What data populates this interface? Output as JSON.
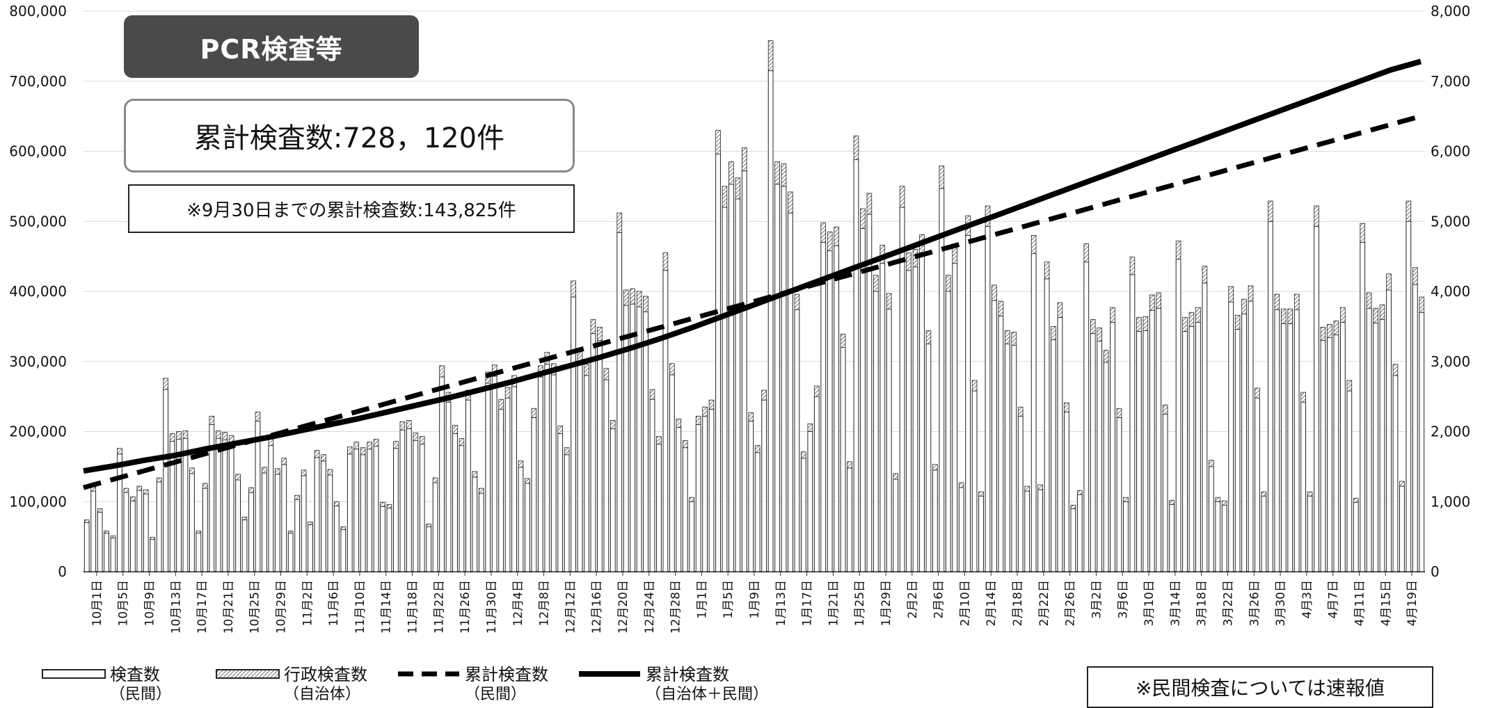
{
  "header": {
    "title": "PCR検査等",
    "total_label": "累計検査数:728，120件",
    "note": "※9月30日までの累計検査数:143,825件"
  },
  "footnote": "※民間検査については速報値",
  "legend": [
    {
      "label": "検査数",
      "sub": "（民間）",
      "symbol": "white-bar"
    },
    {
      "label": "行政検査数",
      "sub": "（自治体）",
      "symbol": "hatched-bar"
    },
    {
      "label": "累計検査数",
      "sub": "（民間）",
      "symbol": "dashed-line"
    },
    {
      "label": "累計検査数",
      "sub": "（自治体＋民間）",
      "symbol": "solid-line"
    }
  ],
  "chart_data": {
    "type": "bar",
    "start_date": "10/1",
    "end_date": "4/21",
    "y_left_lim": [
      0,
      800000
    ],
    "y_left_ticks": [
      "0",
      "100,000",
      "200,000",
      "300,000",
      "400,000",
      "500,000",
      "600,000",
      "700,000",
      "800,000"
    ],
    "y_right_lim": [
      0,
      8000
    ],
    "y_right_ticks": [
      "0",
      "1,000",
      "2,000",
      "3,000",
      "4,000",
      "5,000",
      "6,000",
      "7,000",
      "8,000"
    ],
    "x_tick_labels": [
      "10月1日",
      "10月5日",
      "10月9日",
      "10月13日",
      "10月17日",
      "10月21日",
      "10月25日",
      "10月29日",
      "11月2日",
      "11月6日",
      "11月10日",
      "11月14日",
      "11月18日",
      "11月22日",
      "11月26日",
      "11月30日",
      "12月4日",
      "12月8日",
      "12月12日",
      "12月16日",
      "12月20日",
      "12月24日",
      "12月28日",
      "1月1日",
      "1月5日",
      "1月9日",
      "1月13日",
      "1月17日",
      "1月21日",
      "1月25日",
      "1月29日",
      "2月2日",
      "2月6日",
      "2月10日",
      "2月14日",
      "2月18日",
      "2月22日",
      "2月26日",
      "3月2日",
      "3月6日",
      "3月10日",
      "3月14日",
      "3月18日",
      "3月22日",
      "3月26日",
      "3月30日",
      "4月3日",
      "4月7日",
      "4月11日",
      "4月15日",
      "4月19日"
    ],
    "series": [
      {
        "name": "検査数（民間）",
        "axis": "right",
        "type": "bar",
        "values": [
          700,
          1150,
          850,
          550,
          480,
          1680,
          1130,
          1010,
          1160,
          1110,
          460,
          1280,
          2600,
          1860,
          1890,
          1900,
          1400,
          550,
          1190,
          2100,
          1900,
          1880,
          1830,
          1310,
          740,
          1130,
          2150,
          1410,
          1800,
          1390,
          1530,
          550,
          1030,
          1370,
          670,
          1630,
          1580,
          1380,
          940,
          600,
          1680,
          1750,
          1670,
          1750,
          1790,
          930,
          910,
          1760,
          2020,
          2040,
          1870,
          1820,
          640,
          1270,
          2780,
          2420,
          1970,
          1800,
          2450,
          1350,
          1120,
          2690,
          2790,
          2320,
          2480,
          2640,
          1490,
          1260,
          2200,
          2780,
          2960,
          2810,
          1970,
          1670,
          3920,
          3010,
          2800,
          3400,
          3300,
          2740,
          2040,
          4840,
          3800,
          3820,
          3780,
          3710,
          2460,
          1820,
          4300,
          2810,
          2060,
          1770,
          1000,
          2100,
          2220,
          2320,
          5960,
          5200,
          5530,
          5320,
          5720,
          2150,
          1700,
          2450,
          7150,
          5530,
          5500,
          5120,
          3740,
          1620,
          2000,
          2500,
          4700,
          4580,
          4650,
          3200,
          1480,
          5880,
          4900,
          5100,
          4000,
          4400,
          3750,
          1320,
          5200,
          4300,
          4350,
          4550,
          3250,
          1450,
          5470,
          4000,
          4400,
          1200,
          4800,
          2580,
          1080,
          4930,
          3870,
          3650,
          3250,
          3230,
          2220,
          1150,
          4540,
          1170,
          4180,
          3310,
          3630,
          2280,
          900,
          1100,
          4420,
          3400,
          3290,
          2990,
          3560,
          2200,
          1000,
          4240,
          3430,
          3440,
          3730,
          3760,
          2250,
          960,
          4460,
          3430,
          3500,
          3560,
          4120,
          1500,
          1000,
          950,
          3850,
          3460,
          3680,
          3860,
          2480,
          1080,
          5000,
          3740,
          3540,
          3540,
          3740,
          2420,
          1080,
          4930,
          3300,
          3340,
          3380,
          3560,
          2580,
          990,
          4700,
          3760,
          3550,
          3600,
          4020,
          2800,
          1220,
          5000,
          4100,
          3700
        ]
      },
      {
        "name": "行政検査数（自治体）",
        "axis": "right",
        "type": "bar",
        "values": [
          40,
          60,
          50,
          30,
          30,
          80,
          60,
          60,
          60,
          60,
          30,
          60,
          160,
          110,
          110,
          110,
          80,
          30,
          70,
          120,
          110,
          110,
          110,
          80,
          40,
          70,
          130,
          80,
          100,
          80,
          90,
          30,
          60,
          80,
          40,
          100,
          90,
          80,
          60,
          40,
          100,
          100,
          100,
          100,
          100,
          60,
          50,
          100,
          120,
          120,
          110,
          110,
          40,
          70,
          160,
          140,
          120,
          100,
          140,
          80,
          70,
          160,
          160,
          140,
          150,
          160,
          90,
          70,
          130,
          160,
          170,
          160,
          110,
          100,
          230,
          170,
          160,
          200,
          190,
          160,
          120,
          280,
          220,
          220,
          220,
          220,
          140,
          110,
          250,
          160,
          120,
          100,
          60,
          120,
          130,
          130,
          340,
          300,
          320,
          300,
          330,
          120,
          100,
          140,
          430,
          320,
          320,
          300,
          220,
          90,
          110,
          150,
          280,
          270,
          270,
          190,
          90,
          340,
          280,
          300,
          230,
          260,
          220,
          80,
          300,
          250,
          250,
          260,
          190,
          80,
          320,
          230,
          260,
          70,
          280,
          150,
          60,
          290,
          220,
          210,
          190,
          190,
          130,
          70,
          260,
          70,
          240,
          190,
          210,
          130,
          50,
          60,
          260,
          200,
          190,
          170,
          210,
          130,
          60,
          250,
          200,
          200,
          220,
          220,
          130,
          60,
          260,
          200,
          200,
          210,
          240,
          90,
          60,
          60,
          220,
          200,
          210,
          220,
          140,
          60,
          290,
          220,
          210,
          210,
          220,
          140,
          60,
          290,
          190,
          190,
          200,
          210,
          150,
          60,
          270,
          220,
          210,
          210,
          230,
          160,
          70,
          290,
          240,
          220
        ]
      },
      {
        "name": "累計検査数（民間）",
        "axis": "left",
        "type": "line",
        "values": [
          120000,
          130000,
          140000,
          150000,
          160000,
          170000,
          180000,
          190000,
          200000,
          210000,
          220000,
          230000,
          240000,
          250000,
          260000,
          270000,
          280000,
          290000,
          300000,
          310000,
          320000,
          330000,
          340000,
          350000,
          360000,
          370000,
          380000,
          390000,
          400000,
          410000,
          420000,
          430000,
          440000,
          450000,
          460000,
          470000,
          480000,
          490000,
          500000,
          510000,
          520000,
          530000,
          540000,
          550000,
          560000,
          570000,
          580000,
          590000,
          600000,
          610000,
          620000,
          630000,
          640000,
          650000
        ]
      },
      {
        "name": "累計検査数（自治体＋民間）",
        "axis": "left",
        "type": "line",
        "values": [
          143825,
          151000,
          159000,
          166000,
          175000,
          183000,
          191000,
          200000,
          209000,
          218000,
          228000,
          238000,
          248000,
          259000,
          270000,
          282000,
          294000,
          306000,
          319000,
          333000,
          348000,
          364000,
          380000,
          396000,
          412000,
          428000,
          444000,
          460000,
          476000,
          492000,
          508000,
          524000,
          540000,
          556000,
          572000,
          588000,
          604000,
          620000,
          636000,
          652000,
          668000,
          684000,
          700000,
          716000,
          728120
        ]
      }
    ]
  }
}
